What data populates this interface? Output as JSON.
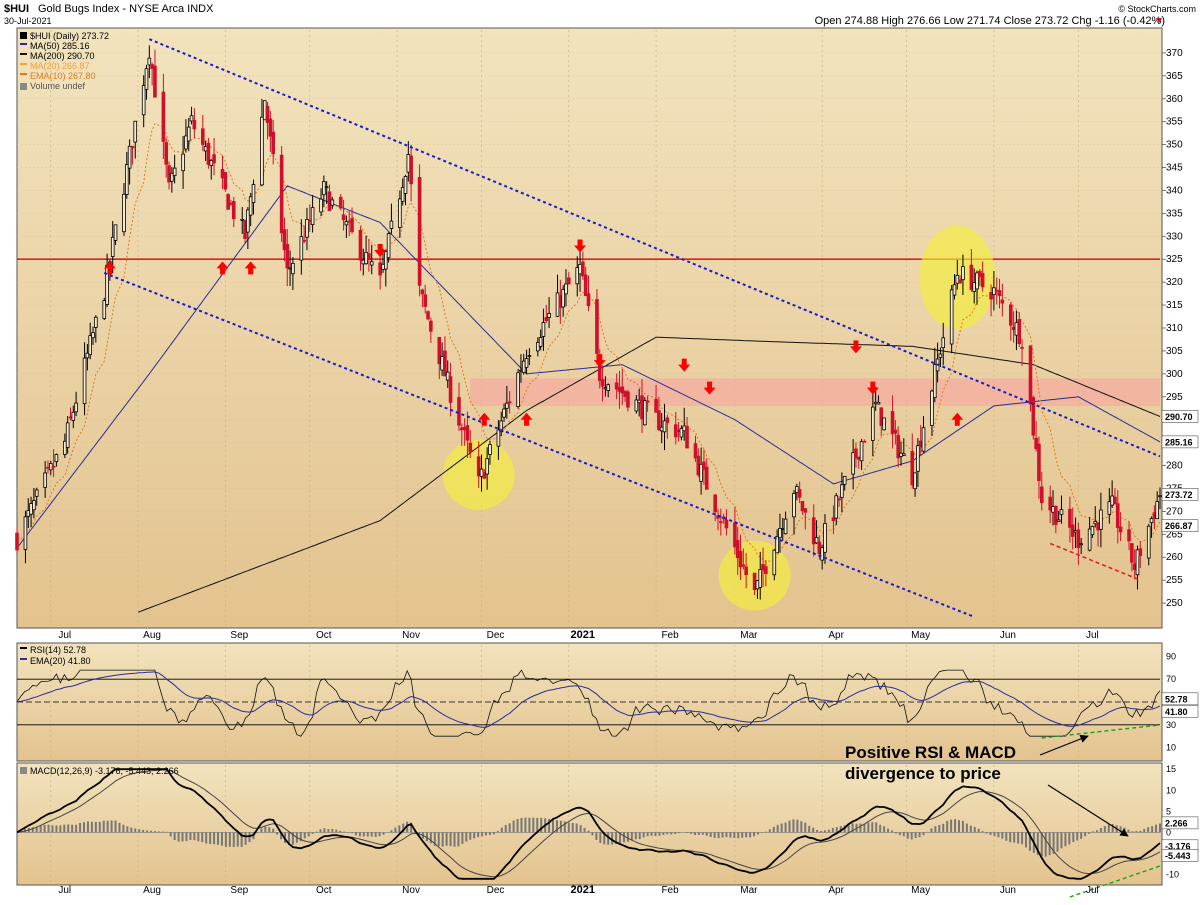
{
  "header": {
    "symbol": "$HUI",
    "name": "Gold Bugs Index - NYSE Arca INDX",
    "date": "30-Jul-2021",
    "ohlc": "Open 274.88  High 276.66  Low 271.74  Close 273.72  Chg -1.16 (-0.42%)",
    "copyright": "© StockCharts.com"
  },
  "legend": {
    "main": [
      "$HUI (Daily) 273.72",
      "MA(50) 285.16",
      "MA(200) 290.70",
      "MA(20) 266.87",
      "EMA(10) 267.80",
      "Volume undef"
    ],
    "rsi": [
      "RSI(14) 52.78",
      "EMA(20) 41.80"
    ],
    "macd": "MACD(12,26,9) -3.176, -5.443, 2.266"
  },
  "annotation": {
    "line1": "Positive RSI & MACD",
    "line2": "divergence to price"
  },
  "colors": {
    "bg_top": "#f2e3bd",
    "bg_bottom": "#e3c38f",
    "up": "#000000",
    "down": "#d0102a",
    "ma50": "#2b2b9a",
    "ma200": "#111111",
    "ema10": "#e07b1c",
    "channel": "#1a1acc",
    "resistance": "#e02020",
    "zone": "#f5aaa0",
    "highlight": "#f5ee3a"
  },
  "chart_data": [
    {
      "type": "candlestick",
      "ylim": [
        245,
        375
      ],
      "yticks": [
        250,
        255,
        260,
        265,
        270,
        275,
        280,
        285,
        290,
        295,
        300,
        305,
        310,
        315,
        320,
        325,
        330,
        335,
        340,
        345,
        350,
        355,
        360,
        365,
        370
      ],
      "xlabels": [
        "Jul",
        "Aug",
        "Sep",
        "Oct",
        "Nov",
        "Dec",
        "2021",
        "Feb",
        "Mar",
        "Apr",
        "May",
        "Jun",
        "Jul"
      ],
      "price_path": [
        {
          "date": "2020-06-19",
          "value": 264
        },
        {
          "date": "2020-07-06",
          "value": 285
        },
        {
          "date": "2020-07-20",
          "value": 318
        },
        {
          "date": "2020-08-05",
          "value": 371
        },
        {
          "date": "2020-08-12",
          "value": 340
        },
        {
          "date": "2020-08-20",
          "value": 355
        },
        {
          "date": "2020-09-08",
          "value": 330
        },
        {
          "date": "2020-09-15",
          "value": 360
        },
        {
          "date": "2020-09-23",
          "value": 322
        },
        {
          "date": "2020-10-06",
          "value": 340
        },
        {
          "date": "2020-10-26",
          "value": 320
        },
        {
          "date": "2020-11-05",
          "value": 348
        },
        {
          "date": "2020-11-09",
          "value": 318
        },
        {
          "date": "2020-11-30",
          "value": 276
        },
        {
          "date": "2020-12-17",
          "value": 305
        },
        {
          "date": "2021-01-05",
          "value": 323
        },
        {
          "date": "2021-01-12",
          "value": 300
        },
        {
          "date": "2021-02-01",
          "value": 290
        },
        {
          "date": "2021-02-11",
          "value": 287
        },
        {
          "date": "2021-03-01",
          "value": 262
        },
        {
          "date": "2021-03-08",
          "value": 252
        },
        {
          "date": "2021-03-22",
          "value": 275
        },
        {
          "date": "2021-03-31",
          "value": 262
        },
        {
          "date": "2021-04-20",
          "value": 293
        },
        {
          "date": "2021-05-03",
          "value": 278
        },
        {
          "date": "2021-05-19",
          "value": 322
        },
        {
          "date": "2021-06-01",
          "value": 318
        },
        {
          "date": "2021-06-11",
          "value": 308
        },
        {
          "date": "2021-06-18",
          "value": 273
        },
        {
          "date": "2021-07-01",
          "value": 264
        },
        {
          "date": "2021-07-13",
          "value": 271
        },
        {
          "date": "2021-07-21",
          "value": 258
        },
        {
          "date": "2021-07-30",
          "value": 273.72
        }
      ],
      "ma50_path": [
        {
          "date": "2020-06-19",
          "value": 262
        },
        {
          "date": "2020-08-05",
          "value": 300
        },
        {
          "date": "2020-09-23",
          "value": 341
        },
        {
          "date": "2020-10-26",
          "value": 333
        },
        {
          "date": "2020-12-17",
          "value": 300
        },
        {
          "date": "2021-01-20",
          "value": 302
        },
        {
          "date": "2021-03-01",
          "value": 290
        },
        {
          "date": "2021-04-05",
          "value": 276
        },
        {
          "date": "2021-05-03",
          "value": 281
        },
        {
          "date": "2021-06-01",
          "value": 293
        },
        {
          "date": "2021-07-01",
          "value": 295
        },
        {
          "date": "2021-07-30",
          "value": 285.16
        }
      ],
      "ma200_path": [
        {
          "date": "2020-08-01",
          "value": 248
        },
        {
          "date": "2020-10-26",
          "value": 268
        },
        {
          "date": "2020-12-17",
          "value": 292
        },
        {
          "date": "2021-02-01",
          "value": 308
        },
        {
          "date": "2021-03-15",
          "value": 307
        },
        {
          "date": "2021-05-03",
          "value": 306
        },
        {
          "date": "2021-06-15",
          "value": 302
        },
        {
          "date": "2021-07-30",
          "value": 290.7
        }
      ],
      "last_values": {
        "price": "273.72",
        "ma50": "285.16",
        "ma200": "290.70",
        "ma20": "266.87"
      },
      "resistance": 325,
      "zone": [
        293,
        299
      ],
      "channel_upper": [
        {
          "date": "2020-08-05",
          "value": 373
        },
        {
          "date": "2021-07-30",
          "value": 282
        }
      ],
      "channel_lower": [
        {
          "date": "2020-07-20",
          "value": 322
        },
        {
          "date": "2021-05-25",
          "value": 247
        }
      ],
      "up_arrows": [
        "2020-07-22",
        "2020-08-31",
        "2020-09-10",
        "2020-12-02",
        "2020-12-17",
        "2021-05-19"
      ],
      "down_arrows": [
        "2020-10-26",
        "2021-01-05",
        "2021-01-12",
        "2021-02-11",
        "2021-02-20",
        "2021-04-13",
        "2021-04-19"
      ],
      "highlights": [
        {
          "date": "2020-11-30",
          "value": 278
        },
        {
          "date": "2021-03-08",
          "value": 256
        },
        {
          "date": "2021-05-19",
          "value": 321
        }
      ]
    },
    {
      "type": "line",
      "name": "RSI(14)",
      "ylim": [
        0,
        100
      ],
      "yticks": [
        10,
        30,
        50,
        70,
        90
      ],
      "last_value": "52.78",
      "ema_last": "41.80"
    },
    {
      "type": "line",
      "name": "MACD(12,26,9)",
      "ylim": [
        -12,
        16
      ],
      "yticks": [
        -10,
        -5,
        0,
        5,
        10,
        15
      ],
      "last_values": [
        "2.266",
        "-3.176",
        "-5.443"
      ]
    }
  ]
}
